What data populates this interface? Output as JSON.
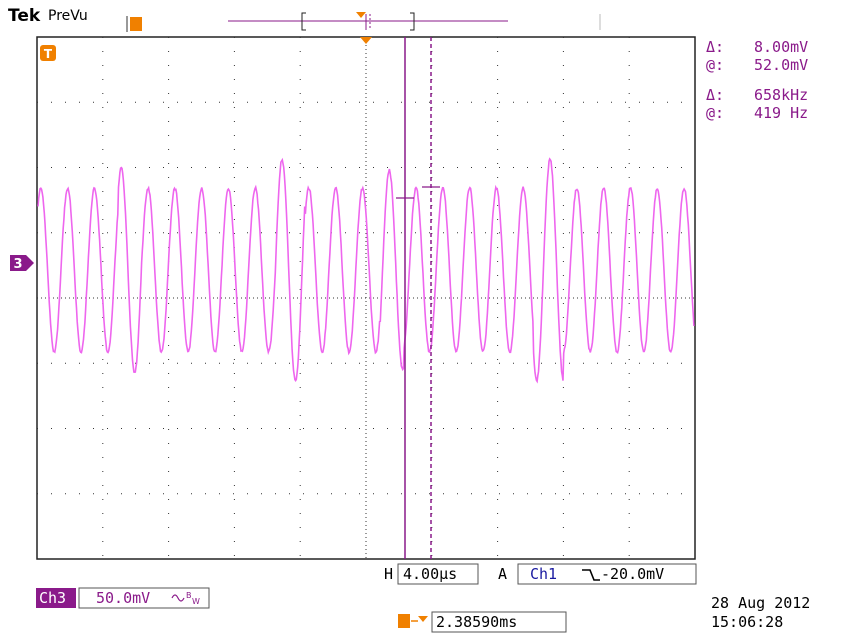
{
  "header": {
    "brand": "Tek",
    "mode": "PreVu"
  },
  "cursor_readout": {
    "amp_delta_symbol": "Δ:",
    "amp_delta_value": "8.00mV",
    "amp_at_symbol": "@:",
    "amp_at_value": "52.0mV",
    "freq_delta_symbol": "Δ:",
    "freq_delta_value": "658kHz",
    "freq_at_symbol": "@:",
    "freq_at_value": "419 Hz"
  },
  "channel_marker": "3",
  "trigger_marker": "T",
  "status_bar": {
    "horizontal_prefix": "H",
    "horizontal_scale": "4.00µs",
    "acq_prefix": "A",
    "trigger_source": "Ch1",
    "trigger_slope_icon": "falling-edge-icon",
    "trigger_level": "-20.0mV",
    "channel_label": "Ch3",
    "channel_scale": "50.0mV",
    "channel_coupling_icon": "ac-bw-icon",
    "trigger_position_label": "2.38590ms",
    "date": "28 Aug 2012",
    "time": "15:06:28"
  },
  "colors": {
    "trace": "#ee66ee",
    "cursor": "#8a1a8a",
    "trigger": "#f08000",
    "grid": "#333333"
  }
}
